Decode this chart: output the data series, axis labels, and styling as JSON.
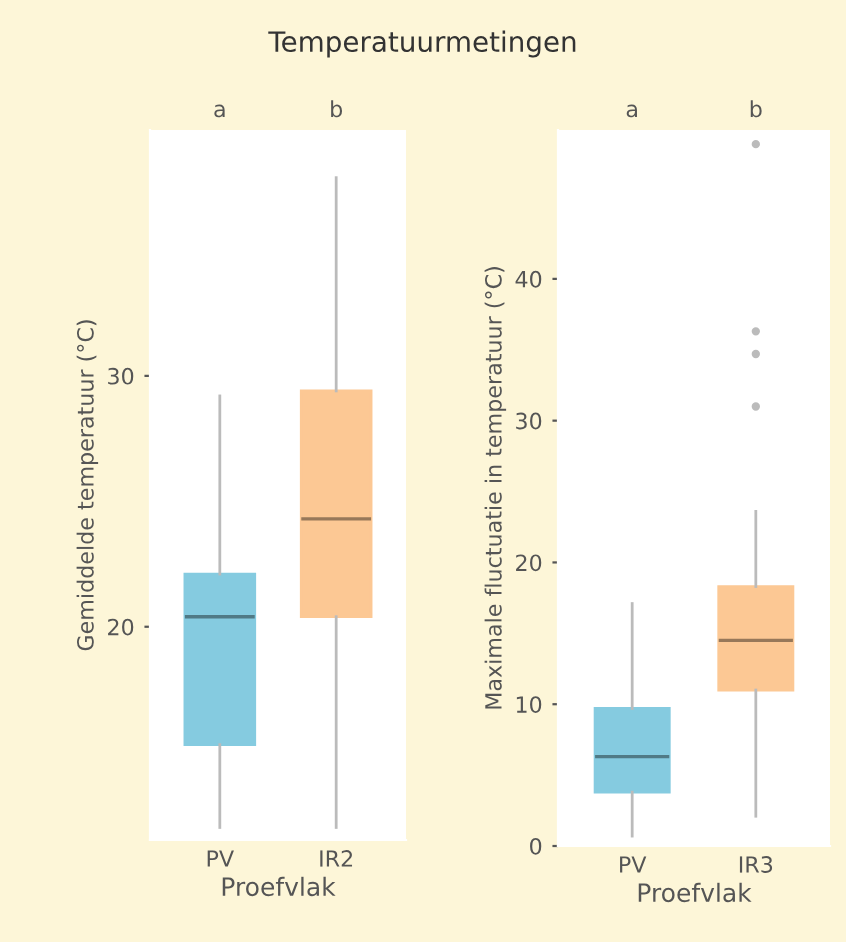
{
  "chart_data": [
    {
      "type": "box",
      "title": "Temperatuurmetingen",
      "xlabel": "Proefvlak",
      "ylabel": "Gemiddelde temperatuur (°C)",
      "categories": [
        "PV",
        "IR2"
      ],
      "colors": [
        "#85cbe0",
        "#fcc894"
      ],
      "boxes": [
        {
          "low": 12.0,
          "q1": 15.3,
          "median": 20.4,
          "q3": 22.1,
          "high": 29.2
        },
        {
          "low": 12.0,
          "q1": 20.4,
          "median": 24.3,
          "q3": 29.4,
          "high": 37.9
        }
      ],
      "ylim": [
        11.5,
        39.8
      ],
      "yticks": [
        20,
        30
      ],
      "grid": false,
      "annotations": [
        "a",
        "b"
      ]
    },
    {
      "type": "box",
      "xlabel": "Proefvlak",
      "ylabel": "Maximale fluctuatie in temperatuur (°C)",
      "categories": [
        "PV",
        "IR3"
      ],
      "colors": [
        "#85cbe0",
        "#fcc894"
      ],
      "boxes": [
        {
          "low": 0.7,
          "q1": 3.8,
          "median": 6.3,
          "q3": 9.7,
          "high": 17.1
        },
        {
          "low": 2.1,
          "q1": 11.0,
          "median": 14.5,
          "q3": 18.3,
          "high": 23.6,
          "outliers": [
            31.0,
            34.7,
            36.3,
            49.5
          ]
        }
      ],
      "ylim": [
        0,
        50.5
      ],
      "yticks": [
        0,
        10,
        20,
        30,
        40
      ],
      "grid": false,
      "annotations": [
        "a",
        "b"
      ]
    }
  ]
}
